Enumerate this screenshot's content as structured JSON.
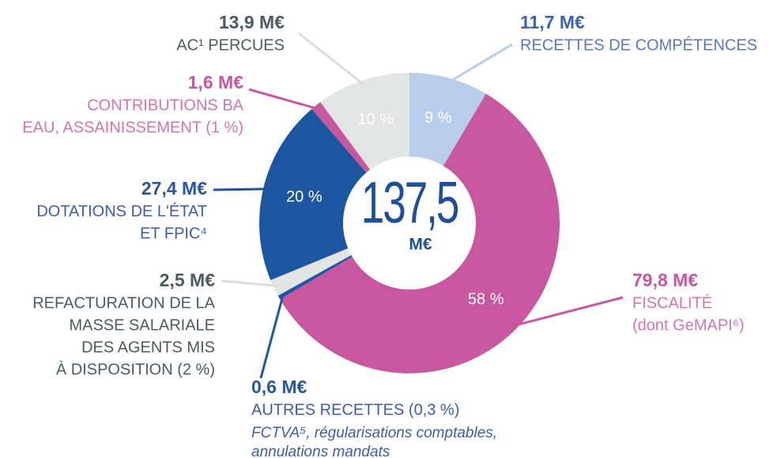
{
  "chart_data": {
    "type": "pie",
    "donut": true,
    "center_label": "137,5",
    "center_unit": "M€",
    "categories": [
      [
        "RECETTES DE COMPÉTENCES"
      ],
      [
        "FISCALITÉ",
        "(dont GeMAPI⁶)"
      ],
      [
        "AUTRES RECETTES (0,3 %)"
      ],
      [
        "REFACTURATION DE LA",
        "MASSE SALARIALE",
        "DES AGENTS MIS",
        "À DISPOSITION (2 %)"
      ],
      [
        "DOTATIONS DE L'ÉTAT",
        "ET FPIC⁴"
      ],
      [
        "CONTRIBUTIONS BA",
        "EAU, ASSAINISSEMENT (1 %)"
      ],
      [
        "AC¹ PERCUES"
      ]
    ],
    "values": [
      11.7,
      79.8,
      0.6,
      2.5,
      27.4,
      1.6,
      13.9
    ],
    "value_labels": [
      "11,7 M€",
      "79,8 M€",
      "0,6 M€",
      "2,5 M€",
      "27,4 M€",
      "1,6 M€",
      "13,9 M€"
    ],
    "percent_labels": [
      "9 %",
      "58 %",
      null,
      null,
      "20 %",
      null,
      "10 %"
    ],
    "annotation": [
      "FCTVA⁵, régularisations comptables,",
      "annulations mandats"
    ],
    "colors": [
      "#b7cdea",
      "#c7579f",
      "#1d57a0",
      "#e3e4e4",
      "#1c56a0",
      "#c7579f",
      "#e3e4e4"
    ],
    "label_colors": [
      "#3e63aa",
      "#c7579f",
      "#2a56a0",
      "#4a5c62",
      "#2a56a0",
      "#c7579f",
      "#4a5c62"
    ],
    "text_colors": [
      "#5a78b9",
      "#d274b0",
      "#3d5ca8",
      "#4a5c62",
      "#3d5ca8",
      "#d274b0",
      "#4a5c62"
    ]
  }
}
